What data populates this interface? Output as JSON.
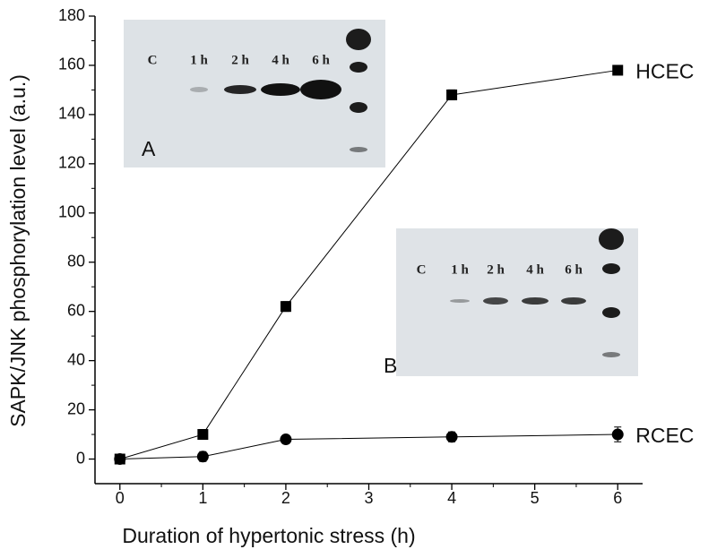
{
  "chart_data": {
    "type": "line",
    "xlabel": "Duration of hypertonic stress (h)",
    "ylabel": "SAPK/JNK phosphorylation level (a.u.)",
    "x": [
      0,
      1,
      2,
      4,
      6
    ],
    "series": [
      {
        "name": "HCEC",
        "color": "#000000",
        "marker": "square",
        "values": [
          0,
          10,
          62,
          148,
          158
        ],
        "errors": [
          1,
          2,
          2,
          2,
          1.5
        ]
      },
      {
        "name": "RCEC",
        "color": "#000000",
        "marker": "circle",
        "values": [
          0,
          1,
          8,
          9,
          10
        ],
        "errors": [
          1,
          2,
          1,
          2,
          3
        ]
      }
    ],
    "xlim": [
      -0.3,
      6.3
    ],
    "xticks": [
      0,
      1,
      2,
      3,
      4,
      5,
      6
    ],
    "ylim": [
      -10,
      180
    ],
    "yticks": [
      0,
      20,
      40,
      60,
      80,
      100,
      120,
      140,
      160,
      180
    ],
    "insets": [
      {
        "label": "A",
        "lanes": [
          "C",
          "1 h",
          "2 h",
          "4 h",
          "6 h"
        ]
      },
      {
        "label": "B",
        "lanes": [
          "C",
          "1 h",
          "2 h",
          "4 h",
          "6 h"
        ]
      }
    ]
  }
}
